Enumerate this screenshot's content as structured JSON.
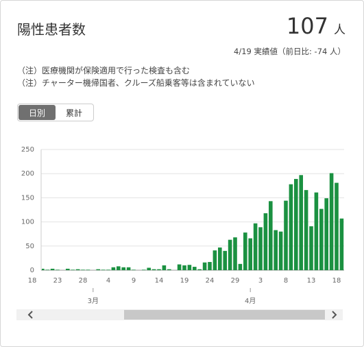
{
  "header": {
    "title": "陽性患者数",
    "value": 107,
    "unit": "人",
    "date_note": "4/19 実績値（前日比: -74 人）"
  },
  "notes": [
    "（注）医療機関が保険適用で行った検査も含む",
    "（注）チャーター機帰国者、クルーズ船乗客等は含まれていない"
  ],
  "toggle": [
    "日別",
    "累計"
  ],
  "chart_data": {
    "type": "bar",
    "color": "#1b9141",
    "categories": [
      "18",
      null,
      null,
      null,
      null,
      "23",
      null,
      null,
      null,
      null,
      "28",
      null,
      null,
      null,
      null,
      "4",
      null,
      null,
      null,
      null,
      "9",
      null,
      null,
      null,
      null,
      "14",
      null,
      null,
      null,
      null,
      "19",
      null,
      null,
      null,
      null,
      "24",
      null,
      null,
      null,
      null,
      "29",
      null,
      null,
      null,
      null,
      "3",
      null,
      null,
      null,
      null,
      "8",
      null,
      null,
      null,
      null,
      "13",
      null,
      null,
      null,
      null,
      "18",
      null
    ],
    "values": [
      3,
      1,
      3,
      1,
      3,
      1,
      0,
      3,
      1,
      2,
      1,
      1,
      0,
      2,
      1,
      1,
      6,
      8,
      6,
      6,
      1,
      0,
      1,
      5,
      2,
      2,
      10,
      2,
      0,
      12,
      10,
      11,
      7,
      2,
      16,
      17,
      41,
      47,
      40,
      63,
      68,
      13,
      78,
      66,
      97,
      89,
      118,
      143,
      83,
      80,
      144,
      178,
      189,
      197,
      166,
      91,
      161,
      127,
      149,
      201,
      181,
      107
    ],
    "months": [
      {
        "label": "3月",
        "first": 12
      },
      {
        "label": "4月",
        "first": 43
      }
    ],
    "ylim": [
      0,
      250
    ],
    "yticks": [
      0,
      50,
      100,
      150,
      200,
      250
    ],
    "grid": true
  }
}
